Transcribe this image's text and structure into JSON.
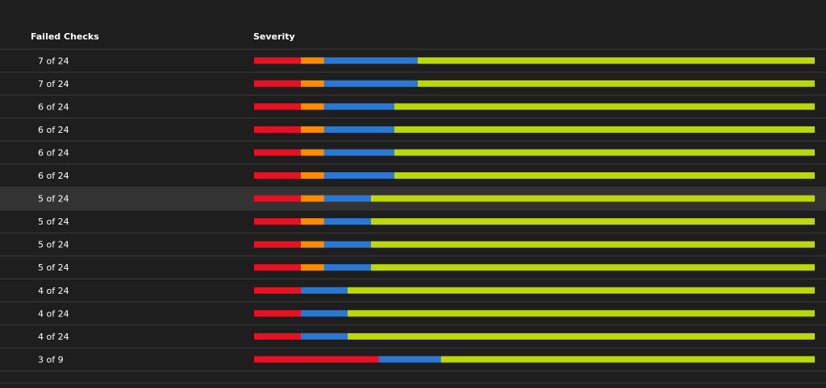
{
  "table": {
    "header": [
      "Failed Checks",
      "Severity"
    ],
    "severity_colors": [
      "#e81123",
      "#ff8c00",
      "#2b78d4",
      "#bad80a"
    ],
    "selected_row": 6,
    "rows": [
      {
        "failed": "7 of 24",
        "severity": [
          2,
          1,
          4,
          17
        ]
      },
      {
        "failed": "7 of 24",
        "severity": [
          2,
          1,
          4,
          17
        ]
      },
      {
        "failed": "6 of 24",
        "severity": [
          2,
          1,
          3,
          18
        ]
      },
      {
        "failed": "6 of 24",
        "severity": [
          2,
          1,
          3,
          18
        ]
      },
      {
        "failed": "6 of 24",
        "severity": [
          2,
          1,
          3,
          18
        ]
      },
      {
        "failed": "6 of 24",
        "severity": [
          2,
          1,
          3,
          18
        ]
      },
      {
        "failed": "5 of 24",
        "severity": [
          2,
          1,
          2,
          19
        ]
      },
      {
        "failed": "5 of 24",
        "severity": [
          2,
          1,
          2,
          19
        ]
      },
      {
        "failed": "5 of 24",
        "severity": [
          2,
          1,
          2,
          19
        ]
      },
      {
        "failed": "5 of 24",
        "severity": [
          2,
          1,
          2,
          19
        ]
      },
      {
        "failed": "4 of 24",
        "severity": [
          2,
          0,
          2,
          20
        ]
      },
      {
        "failed": "4 of 24",
        "severity": [
          2,
          0,
          2,
          20
        ]
      },
      {
        "failed": "4 of 24",
        "severity": [
          2,
          0,
          2,
          20
        ]
      },
      {
        "failed": "3 of 9",
        "severity": [
          2,
          0,
          1,
          6
        ]
      }
    ]
  }
}
